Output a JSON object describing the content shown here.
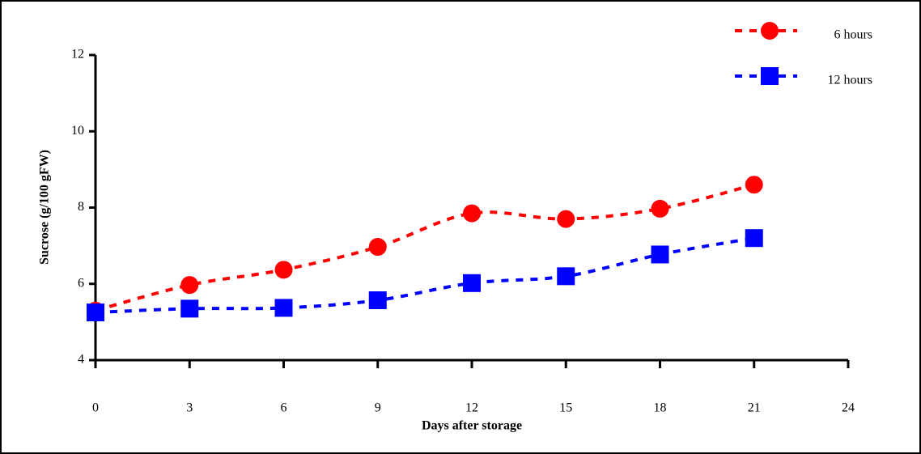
{
  "chart_data": {
    "type": "line",
    "x_label": "Days after storage",
    "y_label": "Sucrose (g/100 gFW)",
    "x": [
      0,
      3,
      6,
      9,
      12,
      15,
      18,
      21
    ],
    "series": [
      {
        "name": "6 hours",
        "color": "#ff0000",
        "marker": "circle",
        "values": [
          5.3,
          5.97,
          6.37,
          6.97,
          7.85,
          7.7,
          7.97,
          8.6
        ]
      },
      {
        "name": "12 hours",
        "color": "#0000ff",
        "marker": "square",
        "values": [
          5.25,
          5.35,
          5.37,
          5.57,
          6.02,
          6.2,
          6.77,
          7.2
        ]
      }
    ],
    "xlim": [
      0,
      24
    ],
    "xticks": [
      0,
      3,
      6,
      9,
      12,
      15,
      18,
      21,
      24
    ],
    "ylim": [
      4,
      12
    ],
    "yticks": [
      4,
      6,
      8,
      10,
      12
    ],
    "legend": "upper right"
  }
}
